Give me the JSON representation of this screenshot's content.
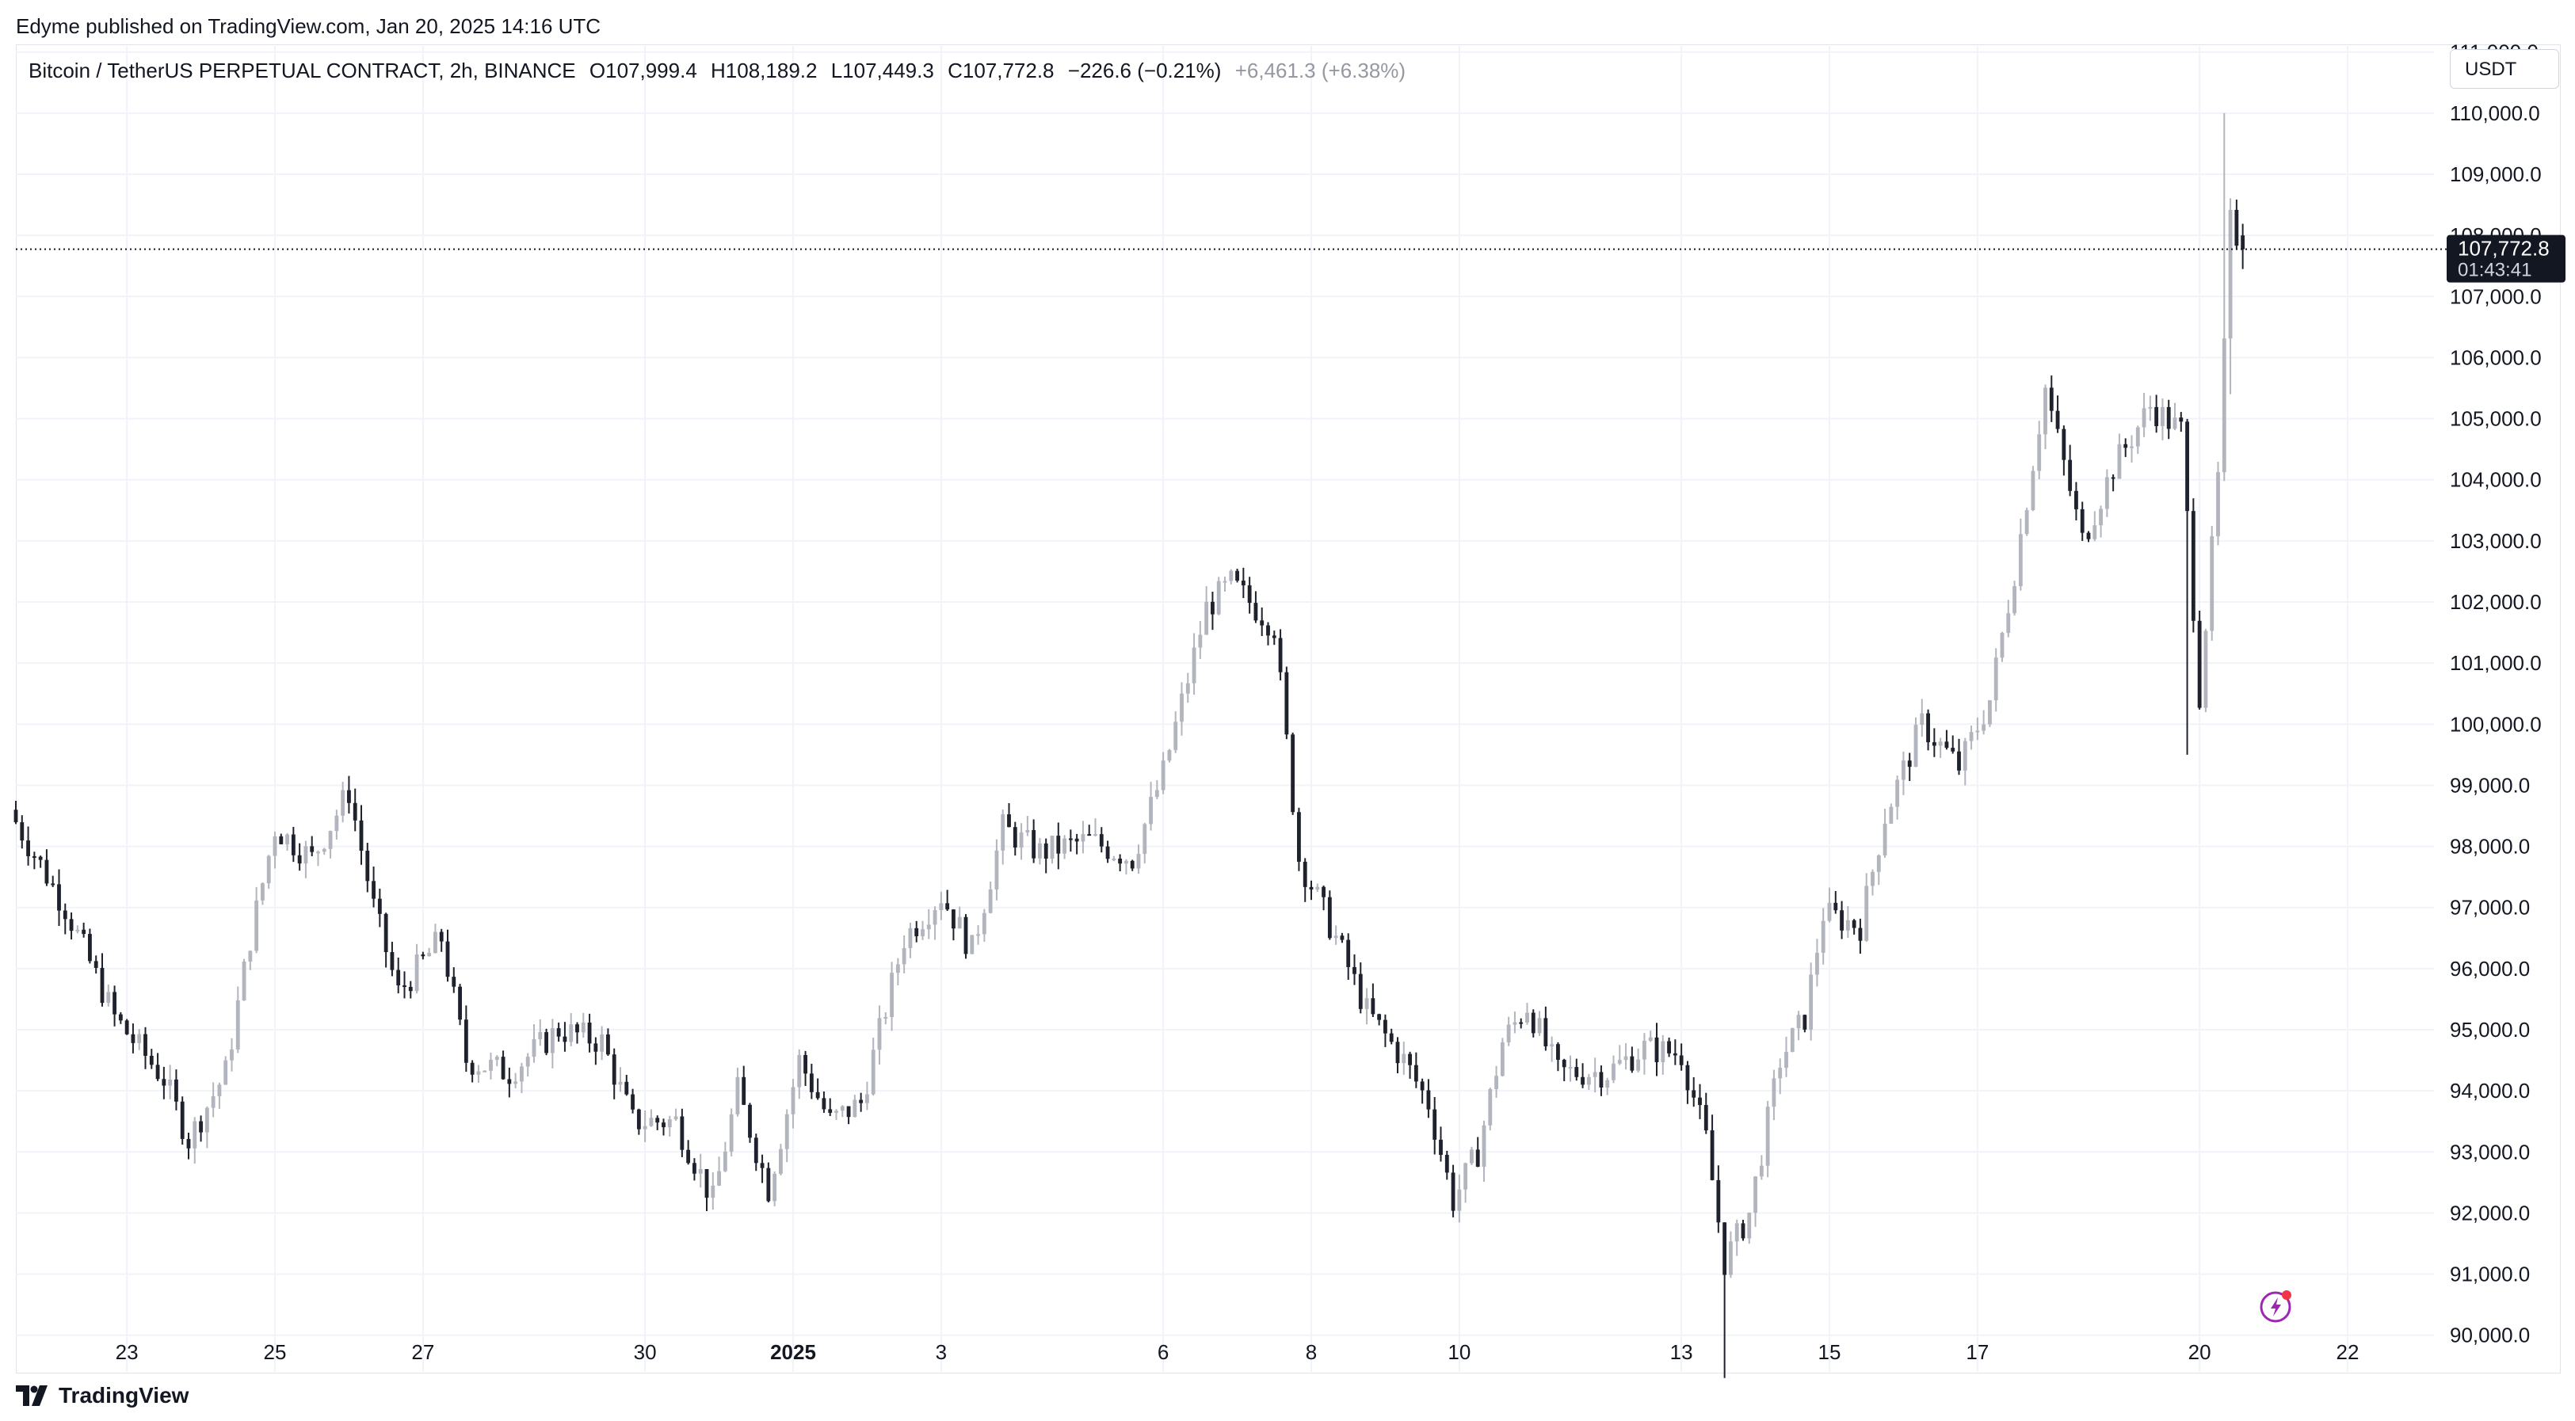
{
  "header": {
    "publisher": "Edyme published on TradingView.com, Jan 20, 2025 14:16 UTC"
  },
  "legend": {
    "symbol": "Bitcoin / TetherUS PERPETUAL CONTRACT, 2h, BINANCE",
    "open": "O107,999.4",
    "high": "H108,189.2",
    "low": "L107,449.3",
    "close": "C107,772.8",
    "change": "−226.6 (−0.21%)",
    "extra": "+6,461.3 (+6.38%)"
  },
  "currency": "USDT",
  "price_tag": {
    "price": "107,772.8",
    "countdown": "01:43:41"
  },
  "footer": {
    "brand": "TradingView"
  },
  "colors": {
    "up": "#b2b5be",
    "down": "#1e222d",
    "grid": "#f0f3fa",
    "axis_text": "#131722",
    "tag_bg": "#131722"
  },
  "chart_data": {
    "type": "candlestick",
    "title": "Bitcoin / TetherUS PERPETUAL CONTRACT, 2h, BINANCE",
    "y_axis_side": "right",
    "ylim": [
      89400,
      111100
    ],
    "xlim": [
      "2024-12-21T12:00",
      "2025-01-23T04:00"
    ],
    "y_ticks": [
      "90,000.0",
      "91,000.0",
      "92,000.0",
      "93,000.0",
      "94,000.0",
      "95,000.0",
      "96,000.0",
      "97,000.0",
      "98,000.0",
      "99,000.0",
      "100,000.0",
      "101,000.0",
      "102,000.0",
      "103,000.0",
      "104,000.0",
      "105,000.0",
      "106,000.0",
      "107,000.0",
      "108,000.0",
      "109,000.0",
      "110,000.0",
      "111,000.0"
    ],
    "x_ticks": [
      {
        "label": "23",
        "date": "2024-12-23",
        "bold": false
      },
      {
        "label": "25",
        "date": "2024-12-25",
        "bold": false
      },
      {
        "label": "27",
        "date": "2024-12-27",
        "bold": false
      },
      {
        "label": "30",
        "date": "2024-12-30",
        "bold": false
      },
      {
        "label": "2025",
        "date": "2025-01-01",
        "bold": true
      },
      {
        "label": "3",
        "date": "2025-01-03",
        "bold": false
      },
      {
        "label": "6",
        "date": "2025-01-06",
        "bold": false
      },
      {
        "label": "8",
        "date": "2025-01-08",
        "bold": false
      },
      {
        "label": "10",
        "date": "2025-01-10",
        "bold": false
      },
      {
        "label": "13",
        "date": "2025-01-13",
        "bold": false
      },
      {
        "label": "15",
        "date": "2025-01-15",
        "bold": false
      },
      {
        "label": "17",
        "date": "2025-01-17",
        "bold": false
      },
      {
        "label": "20",
        "date": "2025-01-20",
        "bold": false
      },
      {
        "label": "22",
        "date": "2025-01-22",
        "bold": false
      }
    ],
    "last_price": 107772.8,
    "grid": true,
    "candle_interval_hours": 2,
    "first_candle_time": "2024-12-21T12:00",
    "waypoints": [
      {
        "t": "2024-12-21T12:00",
        "p": 98400
      },
      {
        "t": "2024-12-22T04:00",
        "p": 97000
      },
      {
        "t": "2024-12-22T20:00",
        "p": 95200
      },
      {
        "t": "2024-12-23T12:00",
        "p": 94200
      },
      {
        "t": "2024-12-23T20:00",
        "p": 93200
      },
      {
        "t": "2024-12-24T08:00",
        "p": 94300
      },
      {
        "t": "2024-12-24T16:00",
        "p": 96500
      },
      {
        "t": "2024-12-25T00:00",
        "p": 98300
      },
      {
        "t": "2024-12-25T12:00",
        "p": 97800
      },
      {
        "t": "2024-12-26T00:00",
        "p": 98900
      },
      {
        "t": "2024-12-26T08:00",
        "p": 97000
      },
      {
        "t": "2024-12-26T16:00",
        "p": 95600
      },
      {
        "t": "2024-12-27T06:00",
        "p": 96500
      },
      {
        "t": "2024-12-27T14:00",
        "p": 94500
      },
      {
        "t": "2024-12-28T04:00",
        "p": 94300
      },
      {
        "t": "2024-12-28T20:00",
        "p": 95000
      },
      {
        "t": "2024-12-29T10:00",
        "p": 94800
      },
      {
        "t": "2024-12-29T20:00",
        "p": 93500
      },
      {
        "t": "2024-12-30T10:00",
        "p": 93500
      },
      {
        "t": "2024-12-30T22:00",
        "p": 92200
      },
      {
        "t": "2024-12-31T06:00",
        "p": 94000
      },
      {
        "t": "2024-12-31T16:00",
        "p": 92400
      },
      {
        "t": "2025-01-01T02:00",
        "p": 94500
      },
      {
        "t": "2025-01-01T12:00",
        "p": 93500
      },
      {
        "t": "2025-01-01T22:00",
        "p": 93800
      },
      {
        "t": "2025-01-02T12:00",
        "p": 96500
      },
      {
        "t": "2025-01-03T00:00",
        "p": 97200
      },
      {
        "t": "2025-01-03T10:00",
        "p": 96300
      },
      {
        "t": "2025-01-03T20:00",
        "p": 98300
      },
      {
        "t": "2025-01-04T08:00",
        "p": 97900
      },
      {
        "t": "2025-01-05T00:00",
        "p": 98100
      },
      {
        "t": "2025-01-05T14:00",
        "p": 97800
      },
      {
        "t": "2025-01-06T00:00",
        "p": 99200
      },
      {
        "t": "2025-01-06T14:00",
        "p": 101900
      },
      {
        "t": "2025-01-06T22:00",
        "p": 102300
      },
      {
        "t": "2025-01-07T12:00",
        "p": 101600
      },
      {
        "t": "2025-01-07T20:00",
        "p": 97800
      },
      {
        "t": "2025-01-08T08:00",
        "p": 96500
      },
      {
        "t": "2025-01-08T18:00",
        "p": 95300
      },
      {
        "t": "2025-01-09T06:00",
        "p": 94500
      },
      {
        "t": "2025-01-09T14:00",
        "p": 93800
      },
      {
        "t": "2025-01-09T22:00",
        "p": 92200
      },
      {
        "t": "2025-01-10T06:00",
        "p": 93000
      },
      {
        "t": "2025-01-10T14:00",
        "p": 94800
      },
      {
        "t": "2025-01-10T22:00",
        "p": 95400
      },
      {
        "t": "2025-01-11T08:00",
        "p": 94300
      },
      {
        "t": "2025-01-12T00:00",
        "p": 94300
      },
      {
        "t": "2025-01-12T12:00",
        "p": 94700
      },
      {
        "t": "2025-01-13T00:00",
        "p": 94600
      },
      {
        "t": "2025-01-13T08:00",
        "p": 93200
      },
      {
        "t": "2025-01-13T14:00",
        "p": 91200
      },
      {
        "t": "2025-01-13T22:00",
        "p": 92000
      },
      {
        "t": "2025-01-14T08:00",
        "p": 94500
      },
      {
        "t": "2025-01-14T16:00",
        "p": 95200
      },
      {
        "t": "2025-01-14T22:00",
        "p": 96900
      },
      {
        "t": "2025-01-15T10:00",
        "p": 96700
      },
      {
        "t": "2025-01-15T18:00",
        "p": 98500
      },
      {
        "t": "2025-01-16T06:00",
        "p": 100000
      },
      {
        "t": "2025-01-16T18:00",
        "p": 99300
      },
      {
        "t": "2025-01-17T04:00",
        "p": 100400
      },
      {
        "t": "2025-01-17T12:00",
        "p": 102500
      },
      {
        "t": "2025-01-17T22:00",
        "p": 105500
      },
      {
        "t": "2025-01-18T10:00",
        "p": 103000
      },
      {
        "t": "2025-01-18T20:00",
        "p": 104200
      },
      {
        "t": "2025-01-19T08:00",
        "p": 105200
      },
      {
        "t": "2025-01-19T18:00",
        "p": 104800
      },
      {
        "t": "2025-01-20T00:00",
        "p": 100500
      },
      {
        "t": "2025-01-20T06:00",
        "p": 104000
      },
      {
        "t": "2025-01-20T10:00",
        "p": 108200
      },
      {
        "t": "2025-01-20T14:00",
        "p": 107772.8
      }
    ],
    "special_wicks": [
      {
        "t": "2025-01-20T08:00",
        "high": 110000
      },
      {
        "t": "2025-01-20T10:00",
        "low": 105400
      },
      {
        "t": "2025-01-13T14:00",
        "low": 89300
      },
      {
        "t": "2025-01-19T20:00",
        "low": 99500
      }
    ]
  }
}
